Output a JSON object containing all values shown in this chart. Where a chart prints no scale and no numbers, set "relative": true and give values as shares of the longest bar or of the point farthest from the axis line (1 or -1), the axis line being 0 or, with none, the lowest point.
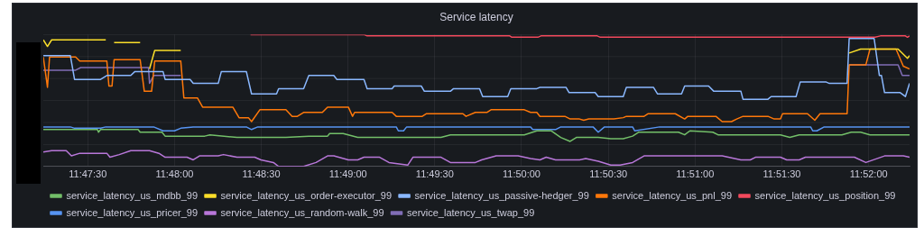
{
  "chart_data": {
    "type": "line",
    "title": "Service latency",
    "relative": true,
    "grid": true,
    "legend": "bottom",
    "marker": "none",
    "xlim": [
      11.7874,
      11.8706
    ],
    "xticks": [
      {
        "value": 11.79167,
        "label": "11:47:30"
      },
      {
        "value": 11.8,
        "label": "11:48:00"
      },
      {
        "value": 11.80833,
        "label": "11:48:30"
      },
      {
        "value": 11.81667,
        "label": "11:49:00"
      },
      {
        "value": 11.825,
        "label": "11:49:30"
      },
      {
        "value": 11.83333,
        "label": "11:50:00"
      },
      {
        "value": 11.84167,
        "label": "11:50:30"
      },
      {
        "value": 11.85,
        "label": "11:51:00"
      },
      {
        "value": 11.85833,
        "label": "11:51:30"
      },
      {
        "value": 11.86667,
        "label": "11:52:00"
      }
    ],
    "series": [
      {
        "name": "service_latency_us_mdbb_99",
        "color": "#73bf69",
        "x": [
          11.7874,
          11.7899,
          11.7926,
          11.7927,
          11.7929,
          11.7965,
          11.7967,
          11.7988,
          11.7991,
          11.8029,
          11.8034,
          11.806,
          11.8095,
          11.8107,
          11.8129,
          11.8147,
          11.8149,
          11.8162,
          11.8176,
          11.8256,
          11.8265,
          11.8336,
          11.8348,
          11.8362,
          11.8371,
          11.838,
          11.8386,
          11.8407,
          11.8419,
          11.8431,
          11.844,
          11.8446,
          11.8484,
          11.849,
          11.8495,
          11.8517,
          11.8522,
          11.8582,
          11.8591,
          11.86,
          11.8641,
          11.865,
          11.8659,
          11.8668,
          11.8686,
          11.8706
        ],
        "values": [
          0.28,
          0.28,
          0.28,
          0.26,
          0.28,
          0.28,
          0.26,
          0.26,
          0.23,
          0.23,
          0.24,
          0.22,
          0.22,
          0.22,
          0.23,
          0.23,
          0.25,
          0.25,
          0.22,
          0.22,
          0.24,
          0.24,
          0.27,
          0.27,
          0.22,
          0.19,
          0.22,
          0.22,
          0.21,
          0.21,
          0.23,
          0.26,
          0.26,
          0.24,
          0.27,
          0.26,
          0.24,
          0.24,
          0.22,
          0.24,
          0.24,
          0.26,
          0.26,
          0.24,
          0.24,
          0.24
        ]
      },
      {
        "name": "service_latency_us_order-executor_99",
        "color": "#fade2a",
        "x": [
          11.7874,
          11.7878,
          11.7882,
          11.7934,
          11.7938,
          11.7942,
          11.7967,
          11.7972,
          11.7976,
          11.7981,
          11.8006,
          11.8271,
          11.8648,
          11.8659,
          11.8695,
          11.8704,
          11.8706
        ],
        "values": [
          0.96,
          0.91,
          0.96,
          0.96,
          null,
          0.94,
          0.94,
          null,
          0.74,
          0.88,
          0.88,
          null,
          0.86,
          0.89,
          0.89,
          0.82,
          0.84
        ]
      },
      {
        "name": "service_latency_us_passive-hedger_99",
        "color": "#8ab8ff",
        "x": [
          11.7874,
          11.79,
          11.7904,
          11.7929,
          11.7935,
          11.7958,
          11.7962,
          11.7989,
          11.7991,
          11.8015,
          11.8018,
          11.8042,
          11.8045,
          11.8069,
          11.8074,
          11.8098,
          11.81,
          11.8124,
          11.8129,
          11.8153,
          11.8156,
          11.8182,
          11.8185,
          11.8209,
          11.8211,
          11.8237,
          11.824,
          11.8265,
          11.8268,
          11.8293,
          11.8296,
          11.832,
          11.8323,
          11.8348,
          11.8351,
          11.8376,
          11.8379,
          11.8404,
          11.8407,
          11.8431,
          11.8434,
          11.846,
          11.8464,
          11.8487,
          11.849,
          11.8513,
          11.8518,
          11.8544,
          11.8546,
          11.857,
          11.8573,
          11.8597,
          11.8601,
          11.8626,
          11.8629,
          11.8646,
          11.8648,
          11.8672,
          11.8677,
          11.8679,
          11.8682,
          11.8697,
          11.8702,
          11.8706
        ],
        "values": [
          0.84,
          0.84,
          0.66,
          0.66,
          0.69,
          0.69,
          0.72,
          0.72,
          0.66,
          0.66,
          0.63,
          0.63,
          0.72,
          0.72,
          0.55,
          0.55,
          0.59,
          0.59,
          0.69,
          0.69,
          0.66,
          0.66,
          0.59,
          0.59,
          0.61,
          0.61,
          0.57,
          0.57,
          0.59,
          0.59,
          0.53,
          0.53,
          0.59,
          0.59,
          0.6,
          0.6,
          0.56,
          0.56,
          0.53,
          0.53,
          0.6,
          0.6,
          0.55,
          0.55,
          0.61,
          0.61,
          0.57,
          0.57,
          0.51,
          0.51,
          0.53,
          0.53,
          0.64,
          0.64,
          0.63,
          0.63,
          0.97,
          0.97,
          0.69,
          0.69,
          0.56,
          0.56,
          0.53,
          0.63
        ]
      },
      {
        "name": "service_latency_us_pnl_99",
        "color": "#ff780a",
        "x": [
          11.7874,
          11.7878,
          11.788,
          11.7905,
          11.7909,
          11.7935,
          11.7937,
          11.794,
          11.7942,
          11.7967,
          11.7971,
          11.7978,
          11.7981,
          11.8006,
          11.8009,
          11.8022,
          11.8027,
          11.8056,
          11.8062,
          11.8071,
          11.8074,
          11.8082,
          11.8107,
          11.8113,
          11.8118,
          11.8124,
          11.8142,
          11.8147,
          11.8167,
          11.8171,
          11.8173,
          11.8209,
          11.8213,
          11.8238,
          11.8242,
          11.8277,
          11.828,
          11.8289,
          11.83,
          11.8304,
          11.8336,
          11.8342,
          11.8348,
          11.8351,
          11.8375,
          11.838,
          11.8389,
          11.8393,
          11.8398,
          11.8422,
          11.8431,
          11.8434,
          11.8451,
          11.8455,
          11.8481,
          11.849,
          11.8493,
          11.852,
          11.8526,
          11.8535,
          11.854,
          11.8546,
          11.857,
          11.8576,
          11.8582,
          11.8584,
          11.8608,
          11.8615,
          11.862,
          11.8646,
          11.8648,
          11.8664,
          11.8668,
          11.8693,
          11.87,
          11.8706
        ],
        "values": [
          0.83,
          0.6,
          0.83,
          0.83,
          0.8,
          0.8,
          0.61,
          0.61,
          0.81,
          0.81,
          0.57,
          0.57,
          0.8,
          0.8,
          0.52,
          0.52,
          0.45,
          0.45,
          0.37,
          0.37,
          0.34,
          0.43,
          0.43,
          0.38,
          0.38,
          0.41,
          0.41,
          0.45,
          0.45,
          0.38,
          0.41,
          0.41,
          0.38,
          0.38,
          0.4,
          0.4,
          0.38,
          0.41,
          0.41,
          0.43,
          0.43,
          0.41,
          0.41,
          0.38,
          0.38,
          0.36,
          0.36,
          0.35,
          0.36,
          0.36,
          0.37,
          0.38,
          0.38,
          0.4,
          0.4,
          0.36,
          0.38,
          0.38,
          0.34,
          0.34,
          0.36,
          0.38,
          0.38,
          0.36,
          0.36,
          0.4,
          0.4,
          0.35,
          0.4,
          0.4,
          0.77,
          0.77,
          0.89,
          0.89,
          0.76,
          0.74
        ]
      },
      {
        "name": "service_latency_us_position_99",
        "color": "#f2495c",
        "x": [
          11.8073,
          11.8182,
          11.8185,
          11.8322,
          11.8324,
          11.8349,
          11.8352,
          11.8406,
          11.8409,
          11.8673,
          11.8678,
          11.8702,
          11.8704,
          11.8706
        ],
        "values": [
          1.0,
          1.0,
          0.99,
          0.99,
          0.98,
          0.98,
          0.99,
          0.99,
          0.98,
          0.98,
          0.99,
          0.99,
          0.98,
          0.99
        ]
      },
      {
        "name": "service_latency_us_pricer_99",
        "color": "#5794f2",
        "x": [
          11.7874,
          11.79,
          11.7904,
          11.7929,
          11.7934,
          11.798,
          11.7989,
          11.8,
          11.8006,
          11.8018,
          11.8069,
          11.8074,
          11.808,
          11.8213,
          11.8215,
          11.822,
          11.8223,
          11.828,
          11.8342,
          11.8344,
          11.8366,
          11.8371,
          11.8402,
          11.8407,
          11.8413,
          11.844,
          11.8442,
          11.8466,
          11.8611,
          11.8613,
          11.8617,
          11.8624,
          11.8706
        ],
        "values": [
          0.3,
          0.3,
          0.29,
          0.29,
          0.3,
          0.3,
          0.27,
          0.27,
          0.29,
          0.3,
          0.3,
          0.28,
          0.3,
          0.3,
          0.27,
          0.27,
          0.3,
          0.3,
          0.3,
          0.28,
          0.28,
          0.3,
          0.3,
          0.26,
          0.3,
          0.3,
          0.27,
          0.3,
          0.3,
          0.27,
          0.27,
          0.3,
          0.3
        ]
      },
      {
        "name": "service_latency_us_random-walk_99",
        "color": "#b877d9",
        "x": [
          11.7874,
          11.7882,
          11.7896,
          11.7901,
          11.7909,
          11.7935,
          11.7938,
          11.7947,
          11.7958,
          11.7976,
          11.7985,
          11.7991,
          11.8012,
          11.8018,
          11.8024,
          11.8042,
          11.8047,
          11.806,
          11.8077,
          11.8083,
          11.8095,
          11.81,
          11.8124,
          11.8136,
          11.8147,
          11.8153,
          11.8167,
          11.8176,
          11.8182,
          11.8197,
          11.8206,
          11.8224,
          11.8229,
          11.8256,
          11.8265,
          11.8289,
          11.8295,
          11.8309,
          11.833,
          11.8342,
          11.8351,
          11.8357,
          11.8366,
          11.8389,
          11.8395,
          11.8407,
          11.8419,
          11.8428,
          11.844,
          11.8451,
          11.8493,
          11.8526,
          11.8544,
          11.8553,
          11.8558,
          11.8582,
          11.8588,
          11.86,
          11.8606,
          11.8653,
          11.8664,
          11.8682,
          11.87,
          11.8706
        ],
        "values": [
          0.11,
          0.12,
          0.12,
          0.08,
          0.1,
          0.1,
          0.07,
          0.09,
          0.12,
          0.12,
          0.1,
          0.07,
          0.07,
          0.05,
          0.08,
          0.08,
          0.09,
          0.07,
          0.07,
          0.05,
          0.03,
          0.0,
          0.0,
          0.03,
          0.08,
          0.08,
          0.05,
          0.05,
          0.07,
          0.07,
          0.03,
          0.01,
          0.07,
          0.07,
          0.03,
          0.03,
          0.05,
          0.08,
          0.08,
          0.06,
          0.05,
          0.07,
          0.05,
          0.05,
          0.06,
          0.04,
          0.01,
          0.01,
          0.03,
          0.08,
          0.08,
          0.08,
          0.05,
          0.05,
          0.07,
          0.07,
          0.05,
          0.05,
          0.07,
          0.07,
          0.03,
          0.08,
          0.08,
          0.07
        ]
      },
      {
        "name": "service_latency_us_twap_99",
        "color": "#806eb7",
        "x": [
          11.7874,
          11.7905,
          11.791,
          11.7975,
          11.7976,
          11.798,
          11.8006,
          11.8271,
          11.8648,
          11.8695,
          11.8699,
          11.8706
        ],
        "values": [
          0.73,
          0.73,
          0.75,
          0.75,
          0.63,
          0.69,
          0.69,
          null,
          0.77,
          0.77,
          0.69,
          0.69
        ]
      }
    ]
  }
}
